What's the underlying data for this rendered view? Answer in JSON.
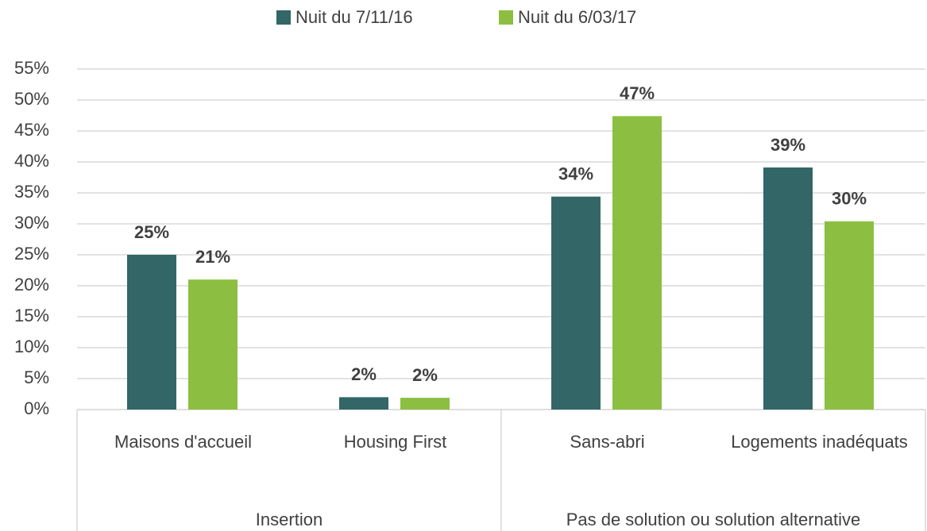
{
  "chart_data": {
    "type": "bar",
    "categories": [
      "Maisons d'accueil",
      "Housing First",
      "Sans-abri",
      "Logements inadéquats"
    ],
    "category_groups": [
      "Insertion",
      "Insertion",
      "Pas de solution ou solution alternative",
      "Pas de solution ou solution alternative"
    ],
    "series": [
      {
        "name": "Nuit du 7/11/16",
        "color": "#336666",
        "values": [
          25,
          2,
          34.4,
          39.1
        ],
        "value_labels": [
          "25%",
          "2%",
          "34%",
          "39%"
        ]
      },
      {
        "name": "Nuit du 6/03/17",
        "color": "#8cbf41",
        "values": [
          21,
          1.9,
          47.4,
          30.4
        ],
        "value_labels": [
          "21%",
          "2%",
          "47%",
          "30%"
        ]
      }
    ],
    "ylim": [
      0,
      55
    ],
    "yticks": [
      {
        "value": 0,
        "label": "0%"
      },
      {
        "value": 5,
        "label": "5%"
      },
      {
        "value": 10,
        "label": "10%"
      },
      {
        "value": 15,
        "label": "15%"
      },
      {
        "value": 20,
        "label": "20%"
      },
      {
        "value": 25,
        "label": "25%"
      },
      {
        "value": 30,
        "label": "30%"
      },
      {
        "value": 35,
        "label": "35%"
      },
      {
        "value": 40,
        "label": "40%"
      },
      {
        "value": 45,
        "label": "45%"
      },
      {
        "value": 50,
        "label": "50%"
      },
      {
        "value": 55,
        "label": "55%"
      }
    ],
    "grid": true,
    "legend": "top"
  }
}
